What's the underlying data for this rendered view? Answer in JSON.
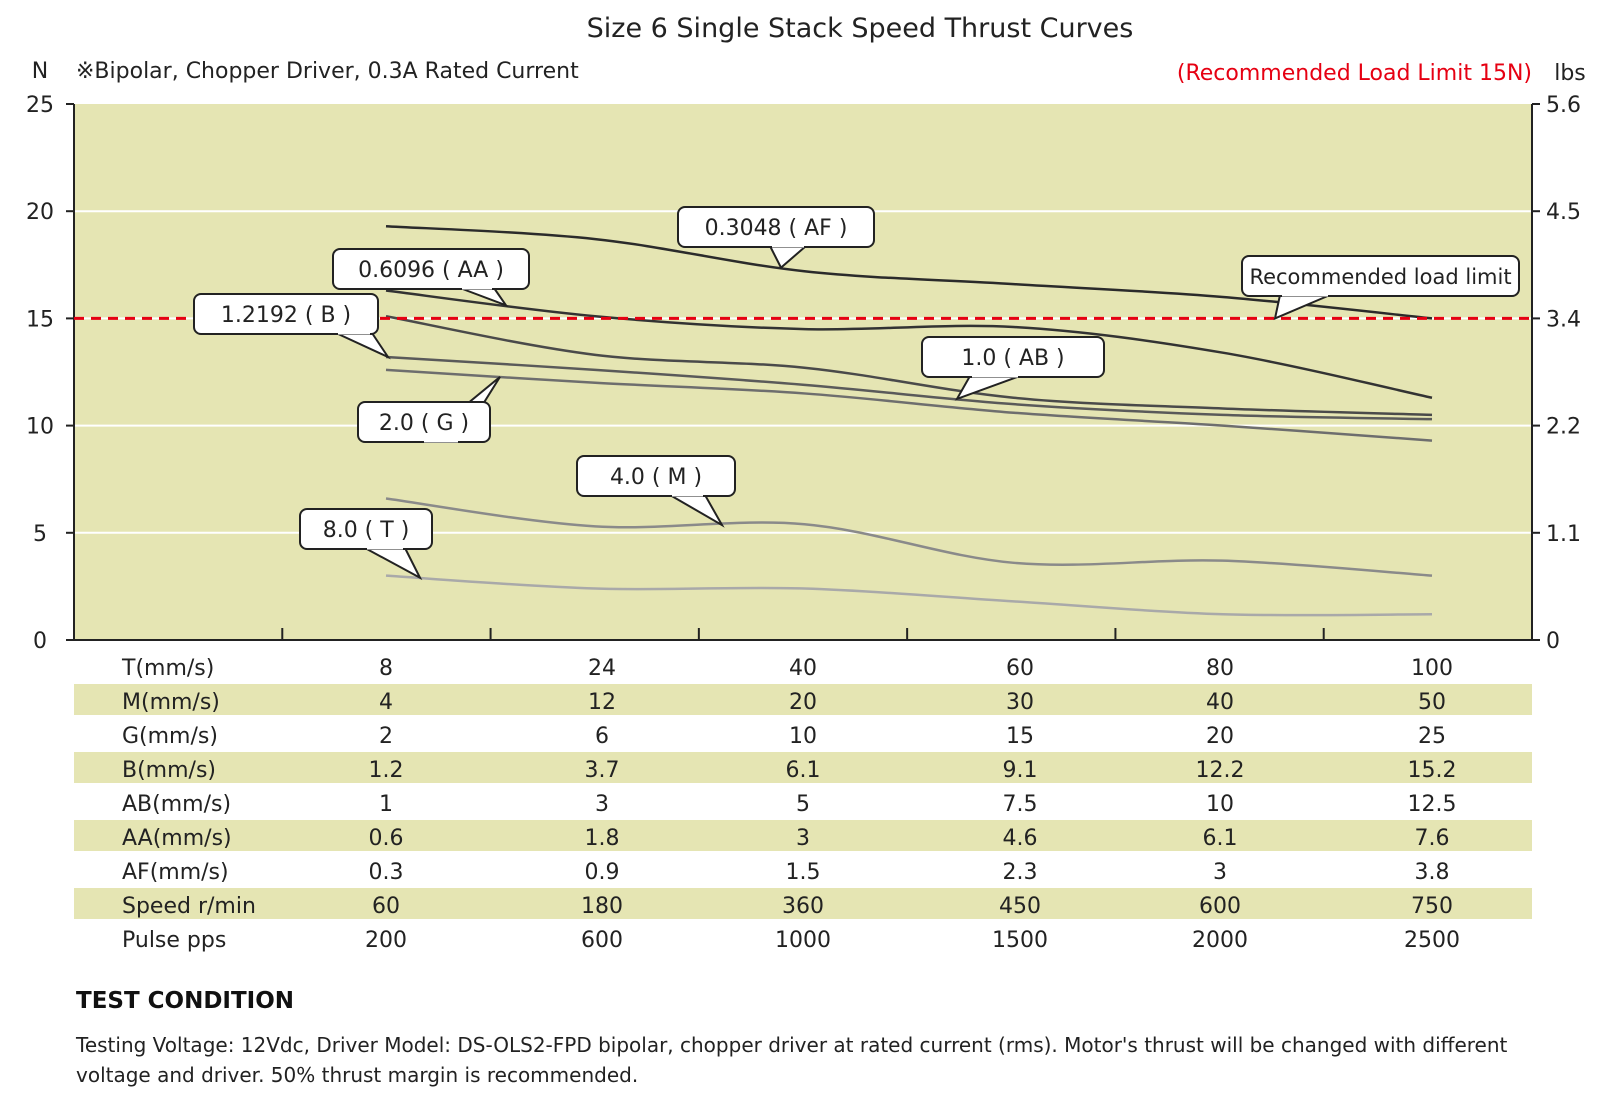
{
  "chart_data": {
    "type": "line",
    "title": "Size 6 Single Stack Speed Thrust Curves",
    "subtitle": "※Bipolar, Chopper Driver, 0.3A Rated Current",
    "load_limit_label": "(Recommended Load Limit 15N)",
    "ylabel_left": "N",
    "ylabel_right": "lbs",
    "ylim": [
      0,
      25
    ],
    "yticks_left": [
      "0",
      "5",
      "10",
      "15",
      "20",
      "25"
    ],
    "yticks_right": [
      "0",
      "1.1",
      "2.2",
      "3.4",
      "4.5",
      "5.6"
    ],
    "grid": true,
    "x_index_range": [
      1,
      6
    ],
    "recommended_load_limit": {
      "value": 15,
      "label": "Recommended load limit"
    },
    "series": [
      {
        "name": "0.3048（AF）",
        "label": "0.3048 ( AF )",
        "color": "#2b2b2b",
        "points": [
          [
            1,
            19.3
          ],
          [
            2,
            18.7
          ],
          [
            3,
            17.2
          ],
          [
            4,
            16.6
          ],
          [
            5,
            16.0
          ],
          [
            6,
            15.0
          ]
        ]
      },
      {
        "name": "0.6096（AA）",
        "label": "0.6096 ( AA )",
        "color": "#333333",
        "points": [
          [
            1,
            16.3
          ],
          [
            2,
            15.1
          ],
          [
            3,
            14.5
          ],
          [
            4,
            14.6
          ],
          [
            5,
            13.4
          ],
          [
            6,
            11.3
          ]
        ]
      },
      {
        "name": "1.2192（B）",
        "label": "1.2192 ( B )",
        "color": "#4a4a4a",
        "points": [
          [
            1,
            15.1
          ],
          [
            2,
            13.3
          ],
          [
            3,
            12.7
          ],
          [
            4,
            11.3
          ],
          [
            5,
            10.8
          ],
          [
            6,
            10.5
          ]
        ]
      },
      {
        "name": "1.0（AB）",
        "label": "1.0 ( AB )",
        "color": "#5a5a5a",
        "points": [
          [
            1,
            13.2
          ],
          [
            2,
            12.6
          ],
          [
            3,
            11.9
          ],
          [
            4,
            11.0
          ],
          [
            5,
            10.5
          ],
          [
            6,
            10.3
          ]
        ]
      },
      {
        "name": "2.0（G）",
        "label": "2.0 ( G )",
        "color": "#6e6e6e",
        "points": [
          [
            1,
            12.6
          ],
          [
            2,
            12.0
          ],
          [
            3,
            11.5
          ],
          [
            4,
            10.6
          ],
          [
            5,
            10.0
          ],
          [
            6,
            9.3
          ]
        ]
      },
      {
        "name": "4.0（M）",
        "label": "4.0 ( M )",
        "color": "#8a8a8a",
        "points": [
          [
            1,
            6.6
          ],
          [
            2,
            5.3
          ],
          [
            3,
            5.4
          ],
          [
            4,
            3.6
          ],
          [
            5,
            3.7
          ],
          [
            6,
            3.0
          ]
        ]
      },
      {
        "name": "8.0（T）",
        "label": "8.0 ( T )",
        "color": "#a9a9a9",
        "points": [
          [
            1,
            3.0
          ],
          [
            2,
            2.4
          ],
          [
            3,
            2.4
          ],
          [
            4,
            1.8
          ],
          [
            5,
            1.2
          ],
          [
            6,
            1.2
          ]
        ]
      }
    ],
    "table": {
      "rows": [
        {
          "label": "T(mm/s)",
          "values": [
            "8",
            "24",
            "40",
            "60",
            "80",
            "100"
          ]
        },
        {
          "label": "M(mm/s)",
          "values": [
            "4",
            "12",
            "20",
            "30",
            "40",
            "50"
          ]
        },
        {
          "label": "G(mm/s)",
          "values": [
            "2",
            "6",
            "10",
            "15",
            "20",
            "25"
          ]
        },
        {
          "label": "B(mm/s)",
          "values": [
            "1.2",
            "3.7",
            "6.1",
            "9.1",
            "12.2",
            "15.2"
          ]
        },
        {
          "label": "AB(mm/s)",
          "values": [
            "1",
            "3",
            "5",
            "7.5",
            "10",
            "12.5"
          ]
        },
        {
          "label": "AA(mm/s)",
          "values": [
            "0.6",
            "1.8",
            "3",
            "4.6",
            "6.1",
            "7.6"
          ]
        },
        {
          "label": "AF(mm/s)",
          "values": [
            "0.3",
            "0.9",
            "1.5",
            "2.3",
            "3",
            "3.8"
          ]
        },
        {
          "label": "Speed r/min",
          "values": [
            "60",
            "180",
            "360",
            "450",
            "600",
            "750"
          ]
        },
        {
          "label": "Pulse  pps",
          "values": [
            "200",
            "600",
            "1000",
            "1500",
            "2000",
            "2500"
          ]
        }
      ]
    }
  },
  "colors": {
    "plot_bg": "#e5e5b3",
    "band_bg": "#e5e5b3",
    "limit_line": "#e60012",
    "limit_text": "#e60012",
    "grid": "#ffffff",
    "axis": "#222222"
  },
  "test_condition": {
    "title": "TEST CONDITION",
    "text": "Testing Voltage: 12Vdc, Driver Model: DS-OLS2-FPD bipolar, chopper driver at rated current (rms). Motor's thrust will be changed with different voltage and driver. 50% thrust margin is recommended."
  }
}
